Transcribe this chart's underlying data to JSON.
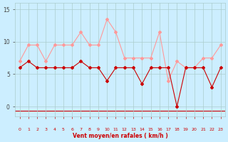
{
  "x": [
    0,
    1,
    2,
    3,
    4,
    5,
    6,
    7,
    8,
    9,
    10,
    11,
    12,
    13,
    14,
    15,
    16,
    17,
    18,
    19,
    20,
    21,
    22,
    23
  ],
  "vent_moyen": [
    6,
    7,
    6,
    6,
    6,
    6,
    6,
    7,
    6,
    6,
    4,
    6,
    6,
    6,
    3.5,
    6,
    6,
    6,
    0,
    6,
    6,
    6,
    3,
    6
  ],
  "vent_rafales": [
    7,
    9.5,
    9.5,
    7,
    9.5,
    9.5,
    9.5,
    11.5,
    9.5,
    9.5,
    13.5,
    11.5,
    7.5,
    7.5,
    7.5,
    7.5,
    11.5,
    4,
    7,
    6,
    6,
    7.5,
    7.5,
    9.5
  ],
  "xlabel": "Vent moyen/en rafales ( km/h )",
  "xlim_min": -0.5,
  "xlim_max": 23.5,
  "ylim_min": -1.5,
  "ylim_max": 16,
  "yticks": [
    0,
    5,
    10,
    15
  ],
  "bg_color": "#cceeff",
  "grid_color": "#aacccc",
  "line_color_moyen": "#cc0000",
  "line_color_rafales": "#ff9999",
  "xlabel_color": "#cc0000",
  "tick_color_x": "#cc0000",
  "tick_color_y": "#444444"
}
